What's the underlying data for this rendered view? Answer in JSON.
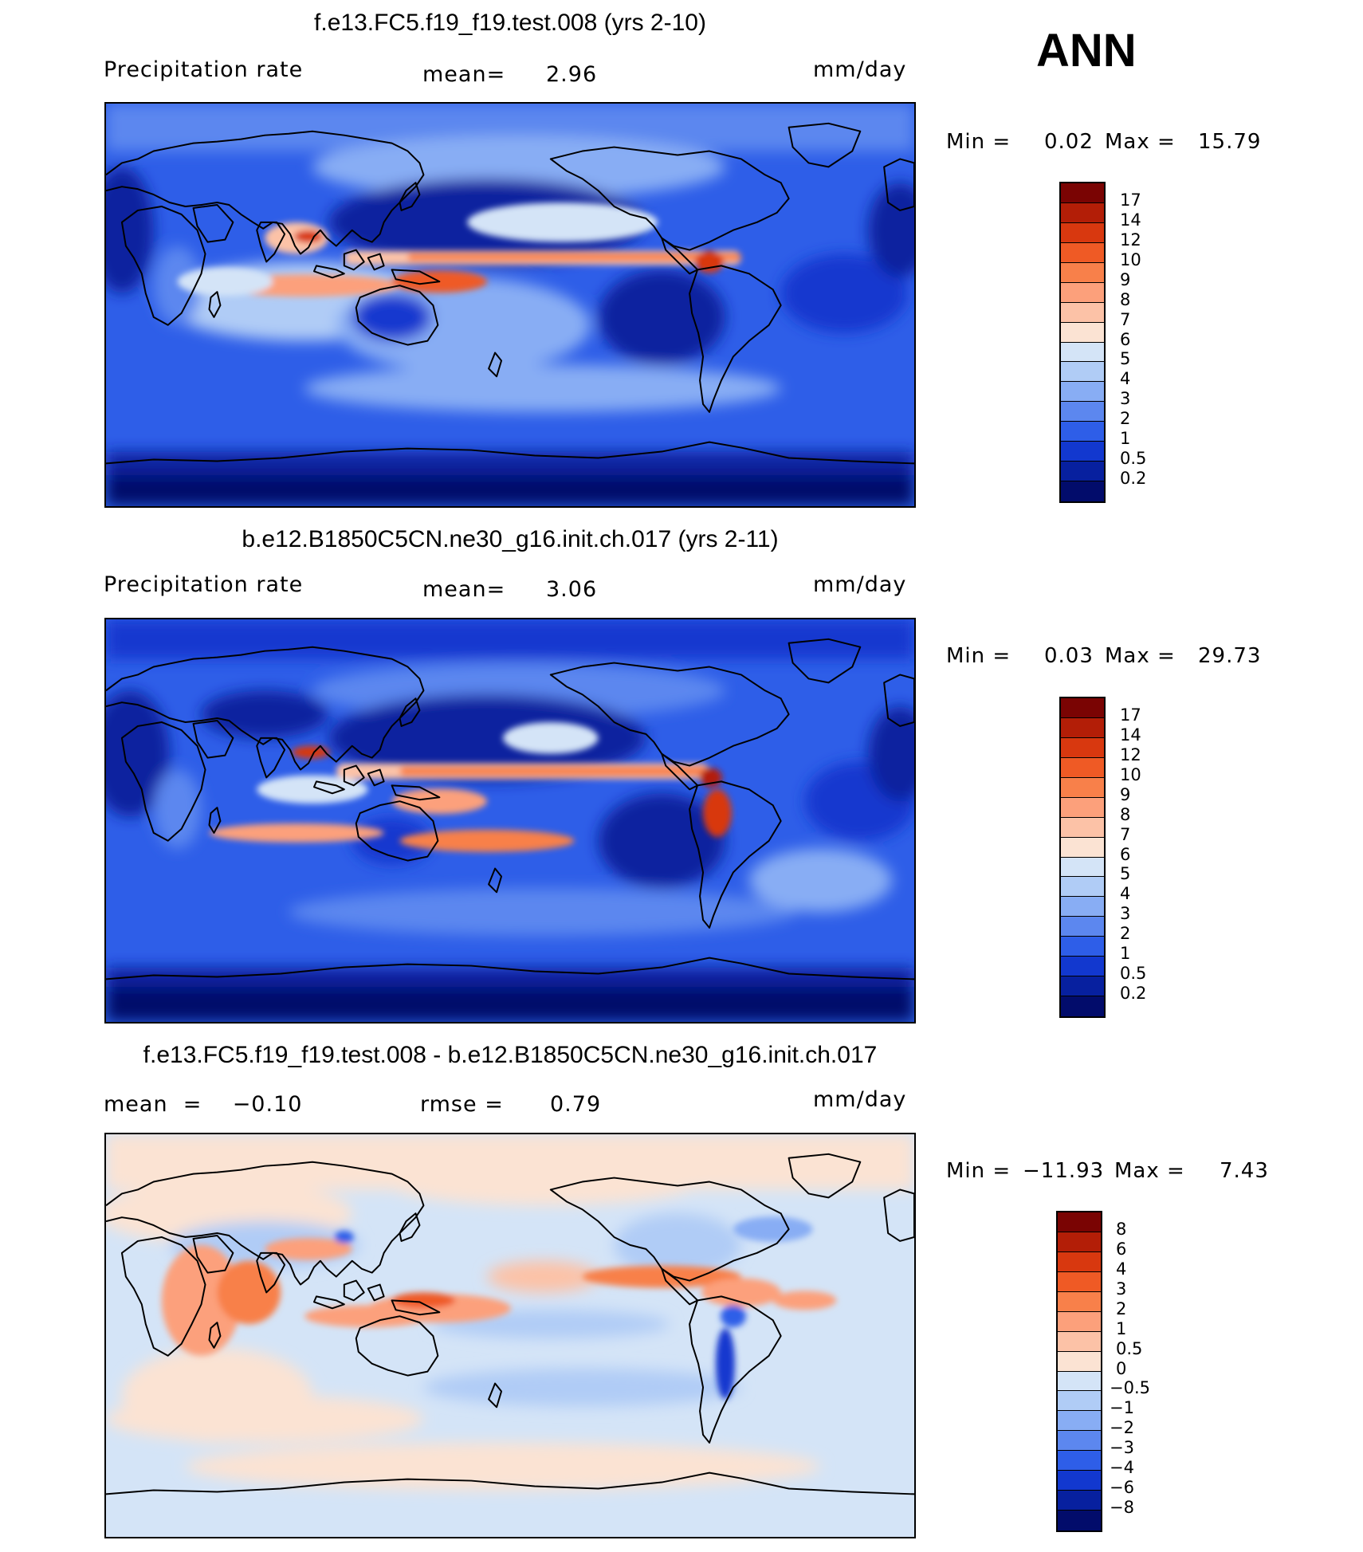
{
  "season": "ANN",
  "panels": [
    {
      "title": "f.e13.FC5.f19_f19.test.008 (yrs 2-10)",
      "left_label": "Precipitation  rate",
      "mid_label": "mean=",
      "mid_value": "2.96",
      "units": "mm/day",
      "min_label": "Min  =",
      "min_value": "0.02",
      "max_label": "Max  =",
      "max_value": "15.79",
      "colorbar": {
        "labels": [
          "17",
          "14",
          "12",
          "10",
          "9",
          "8",
          "7",
          "6",
          "5",
          "4",
          "3",
          "2",
          "1",
          "0.5",
          "0.2"
        ],
        "colors": [
          "#7a0403",
          "#b31e07",
          "#d8380f",
          "#ef5a25",
          "#f8804a",
          "#fca07b",
          "#fcc2a7",
          "#fbe3d3",
          "#d4e4f7",
          "#b0ccf6",
          "#88adf4",
          "#5c87ef",
          "#2e5ee8",
          "#1238cf",
          "#07209f",
          "#020c6b"
        ]
      }
    },
    {
      "title": "b.e12.B1850C5CN.ne30_g16.init.ch.017 (yrs 2-11)",
      "left_label": "Precipitation  rate",
      "mid_label": "mean=",
      "mid_value": "3.06",
      "units": "mm/day",
      "min_label": "Min  =",
      "min_value": "0.03",
      "max_label": "Max  =",
      "max_value": "29.73",
      "colorbar": {
        "labels": [
          "17",
          "14",
          "12",
          "10",
          "9",
          "8",
          "7",
          "6",
          "5",
          "4",
          "3",
          "2",
          "1",
          "0.5",
          "0.2"
        ],
        "colors": [
          "#7a0403",
          "#b31e07",
          "#d8380f",
          "#ef5a25",
          "#f8804a",
          "#fca07b",
          "#fcc2a7",
          "#fbe3d3",
          "#d4e4f7",
          "#b0ccf6",
          "#88adf4",
          "#5c87ef",
          "#2e5ee8",
          "#1238cf",
          "#07209f",
          "#020c6b"
        ]
      }
    },
    {
      "title": "f.e13.FC5.f19_f19.test.008 - b.e12.B1850C5CN.ne30_g16.init.ch.017",
      "left_label": "mean  =    −0.10",
      "mid_label": "rmse  =",
      "mid_value": "0.79",
      "units": "mm/day",
      "min_label": "Min  =",
      "min_value": "−11.93",
      "max_label": "Max  =",
      "max_value": "7.43",
      "colorbar": {
        "labels": [
          "8",
          "6",
          "4",
          "3",
          "2",
          "1",
          "0.5",
          "0",
          "−0.5",
          "−1",
          "−2",
          "−3",
          "−4",
          "−6",
          "−8"
        ],
        "colors": [
          "#7a0403",
          "#b31e07",
          "#d8380f",
          "#ef5a25",
          "#f8804a",
          "#fca07b",
          "#fcc2a7",
          "#fbe3d3",
          "#d4e4f7",
          "#b0ccf6",
          "#88adf4",
          "#5c87ef",
          "#2e5ee8",
          "#1238cf",
          "#07209f",
          "#020c6b"
        ]
      }
    }
  ]
}
